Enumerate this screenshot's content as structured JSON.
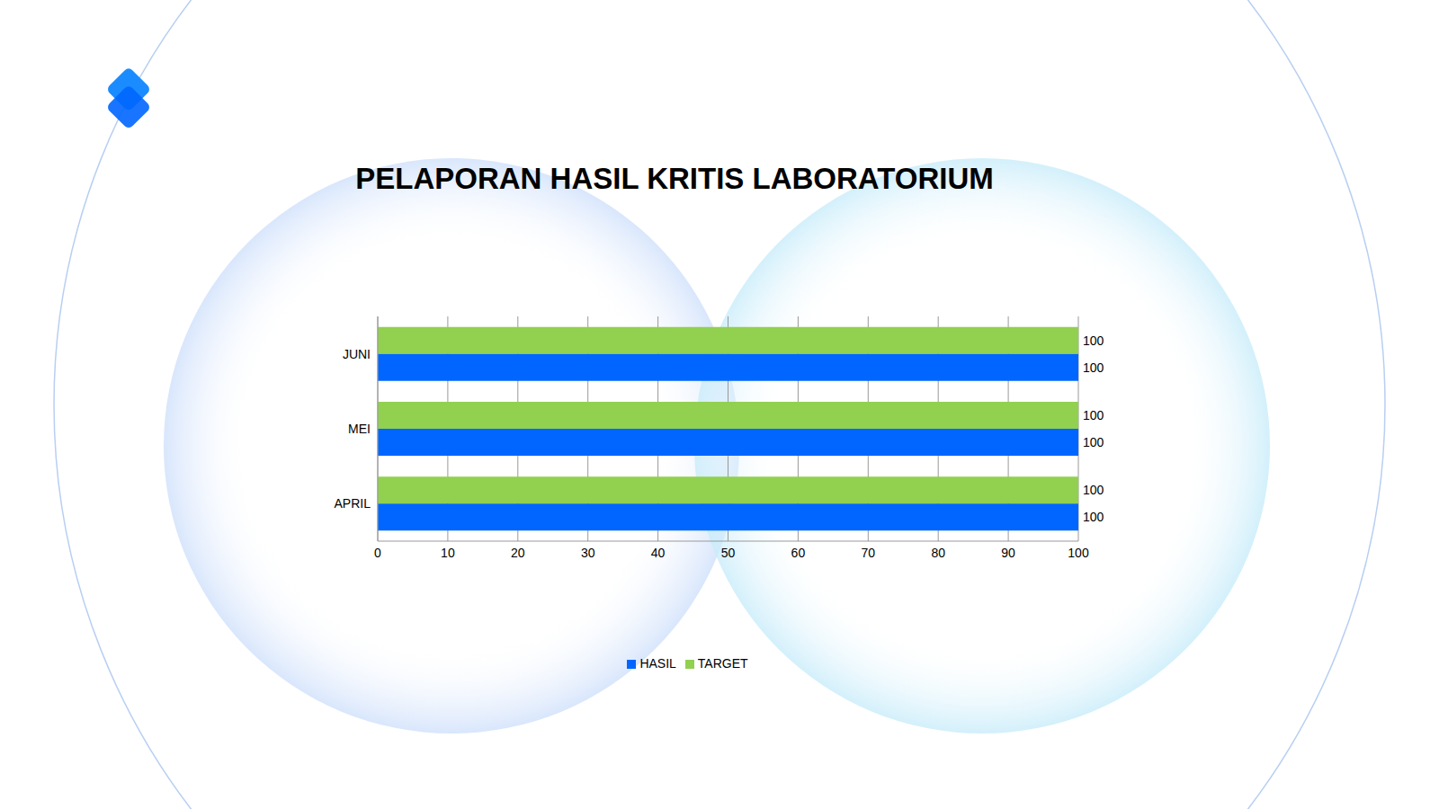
{
  "chart_data": {
    "type": "bar",
    "title": "PELAPORAN HASIL KRITIS LABORATORIUM",
    "orientation": "horizontal",
    "categories": [
      "APRIL",
      "MEI",
      "JUNI"
    ],
    "series": [
      {
        "name": "TARGET",
        "color": "#92d050",
        "values": [
          100,
          100,
          100
        ]
      },
      {
        "name": "HASIL",
        "color": "#0066ff",
        "values": [
          100,
          100,
          100
        ]
      }
    ],
    "xlim": [
      0,
      100
    ],
    "xticks": [
      0,
      10,
      20,
      30,
      40,
      50,
      60,
      70,
      80,
      90,
      100
    ],
    "grid": true,
    "legend": "bottom",
    "data_labels": true
  }
}
